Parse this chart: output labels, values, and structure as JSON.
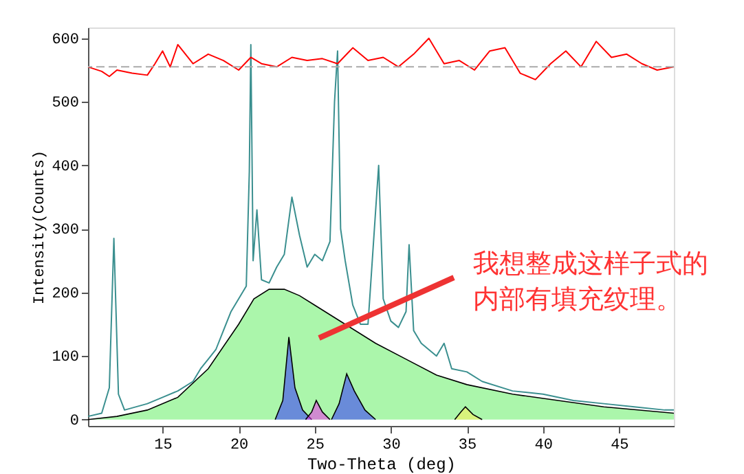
{
  "chart_data": {
    "type": "line",
    "xlabel": "Two-Theta (deg)",
    "ylabel": "Intensity(Counts)",
    "xlim": [
      10.1,
      48.6
    ],
    "ylim": [
      -10,
      617
    ],
    "xticks": [
      15,
      20,
      25,
      30,
      35,
      40,
      45
    ],
    "yticks": [
      0,
      100,
      200,
      300,
      400,
      500,
      600
    ],
    "grid": false,
    "series": [
      {
        "type": "area",
        "color": "#66ee66",
        "x": [
          10.1,
          12,
          14,
          16,
          18,
          20,
          21,
          22,
          23,
          24,
          25,
          27,
          29,
          31,
          33,
          35,
          38,
          41,
          44,
          48.6
        ],
        "values": [
          0,
          5,
          15,
          35,
          80,
          150,
          190,
          205,
          205,
          195,
          180,
          150,
          120,
          95,
          70,
          55,
          40,
          30,
          20,
          10
        ]
      },
      {
        "type": "area",
        "color": "#3333ff",
        "x": [
          22.4,
          22.9,
          23.3,
          23.7,
          24.2,
          24.8
        ],
        "values": [
          0,
          30,
          130,
          50,
          15,
          0
        ]
      },
      {
        "type": "area",
        "color": "#3333ff",
        "x": [
          26.1,
          26.6,
          27.1,
          27.6,
          28.3,
          29
        ],
        "values": [
          0,
          25,
          72,
          45,
          15,
          0
        ]
      },
      {
        "type": "area",
        "color": "#ee33ee",
        "x": [
          24.4,
          24.8,
          25.1,
          25.5,
          26
        ],
        "values": [
          0,
          12,
          30,
          12,
          0
        ]
      },
      {
        "type": "area",
        "color": "#ffee55",
        "x": [
          34.2,
          34.6,
          34.9,
          35.4,
          36
        ],
        "values": [
          0,
          12,
          20,
          8,
          0
        ]
      },
      {
        "color": "#3a8f8f",
        "x": [
          10.1,
          11,
          11.5,
          11.8,
          12.1,
          12.5,
          14,
          15,
          16,
          17,
          17.5,
          18,
          18.5,
          19,
          19.5,
          20,
          20.5,
          20.7,
          20.8,
          20.95,
          21.2,
          21.5,
          22,
          22.5,
          23,
          23.5,
          24,
          24.5,
          25,
          25.5,
          26,
          26.3,
          26.5,
          26.7,
          27,
          27.5,
          28,
          28.5,
          29.2,
          29.5,
          30,
          30.5,
          31,
          31.2,
          31.5,
          32,
          33,
          33.5,
          34,
          35,
          36,
          38,
          40,
          42,
          44,
          46,
          48,
          48.6
        ],
        "values": [
          5,
          10,
          50,
          285,
          40,
          15,
          25,
          35,
          45,
          60,
          80,
          95,
          110,
          140,
          170,
          190,
          210,
          390,
          590,
          250,
          330,
          220,
          215,
          240,
          260,
          350,
          290,
          240,
          260,
          250,
          280,
          500,
          580,
          300,
          250,
          180,
          150,
          150,
          400,
          190,
          155,
          145,
          170,
          275,
          140,
          120,
          100,
          120,
          80,
          75,
          60,
          45,
          40,
          30,
          25,
          20,
          15,
          15
        ]
      },
      {
        "color": "#ff0000",
        "x": [
          10.1,
          11,
          11.5,
          12,
          13,
          14,
          14.5,
          15,
          15.5,
          16,
          17,
          18,
          19,
          20,
          20.8,
          21.5,
          22.5,
          23.5,
          24.5,
          25.5,
          26.5,
          27.5,
          28.5,
          29.5,
          30.5,
          31.5,
          32.5,
          33.5,
          34.5,
          35.5,
          36.5,
          37.5,
          38.5,
          39.5,
          40.5,
          41.5,
          42.5,
          43.5,
          44.5,
          45.5,
          46.5,
          47.5,
          48.6
        ],
        "values": [
          555,
          548,
          540,
          550,
          545,
          542,
          560,
          580,
          555,
          590,
          560,
          575,
          565,
          550,
          570,
          560,
          555,
          570,
          565,
          568,
          560,
          585,
          565,
          570,
          555,
          575,
          600,
          560,
          565,
          550,
          580,
          585,
          545,
          535,
          560,
          580,
          555,
          595,
          570,
          575,
          560,
          550,
          555
        ]
      }
    ],
    "ref_lines": [
      {
        "axis": "y",
        "value": 555,
        "color": "#aaaaaa",
        "line_style": "dashed"
      }
    ],
    "annotations": [
      "我想整成这样子式的",
      "内部有填充纹理。"
    ]
  }
}
